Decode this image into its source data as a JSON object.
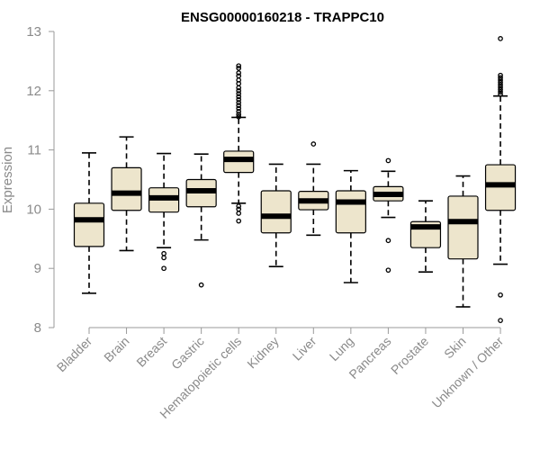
{
  "chart_data": {
    "type": "boxplot",
    "title": "ENSG00000160218 - TRAPPC10",
    "xlabel": "",
    "ylabel": "Expression",
    "ylim": [
      8,
      13
    ],
    "yticks": [
      8,
      9,
      10,
      11,
      12,
      13
    ],
    "grid": false,
    "box_color": "#ede5cc",
    "categories": [
      "Bladder",
      "Brain",
      "Breast",
      "Gastric",
      "Hematopoietic cells",
      "Kidney",
      "Liver",
      "Lung",
      "Pancreas",
      "Prostate",
      "Skin",
      "Unknown / Other"
    ],
    "boxes": [
      {
        "name": "Bladder",
        "whisker_low": 8.58,
        "q1": 9.37,
        "median": 9.82,
        "q3": 10.1,
        "whisker_high": 10.95,
        "outliers": []
      },
      {
        "name": "Brain",
        "whisker_low": 9.3,
        "q1": 9.98,
        "median": 10.27,
        "q3": 10.7,
        "whisker_high": 11.22,
        "outliers": []
      },
      {
        "name": "Breast",
        "whisker_low": 9.35,
        "q1": 9.95,
        "median": 10.19,
        "q3": 10.36,
        "whisker_high": 10.94,
        "outliers": [
          9.25,
          9.18,
          9.0
        ]
      },
      {
        "name": "Gastric",
        "whisker_low": 9.48,
        "q1": 10.04,
        "median": 10.31,
        "q3": 10.5,
        "whisker_high": 10.93,
        "outliers": [
          8.72
        ]
      },
      {
        "name": "Hematopoietic cells",
        "whisker_low": 10.1,
        "q1": 10.62,
        "median": 10.84,
        "q3": 10.98,
        "whisker_high": 11.55,
        "outliers": [
          12.42,
          12.38,
          12.3,
          12.25,
          12.18,
          12.12,
          12.05,
          12.0,
          11.95,
          11.9,
          11.85,
          11.8,
          11.75,
          11.7,
          11.65,
          11.6,
          11.56,
          10.05,
          10.0,
          9.93,
          9.8
        ]
      },
      {
        "name": "Kidney",
        "whisker_low": 9.03,
        "q1": 9.6,
        "median": 9.88,
        "q3": 10.31,
        "whisker_high": 10.76,
        "outliers": []
      },
      {
        "name": "Liver",
        "whisker_low": 9.56,
        "q1": 9.99,
        "median": 10.14,
        "q3": 10.3,
        "whisker_high": 10.76,
        "outliers": [
          11.1
        ]
      },
      {
        "name": "Lung",
        "whisker_low": 8.76,
        "q1": 9.6,
        "median": 10.12,
        "q3": 10.31,
        "whisker_high": 10.65,
        "outliers": []
      },
      {
        "name": "Pancreas",
        "whisker_low": 9.86,
        "q1": 10.14,
        "median": 10.25,
        "q3": 10.38,
        "whisker_high": 10.64,
        "outliers": [
          10.82,
          9.47,
          8.97
        ]
      },
      {
        "name": "Prostate",
        "whisker_low": 8.94,
        "q1": 9.35,
        "median": 9.7,
        "q3": 9.79,
        "whisker_high": 10.14,
        "outliers": []
      },
      {
        "name": "Skin",
        "whisker_low": 8.35,
        "q1": 9.16,
        "median": 9.79,
        "q3": 10.22,
        "whisker_high": 10.56,
        "outliers": []
      },
      {
        "name": "Unknown / Other",
        "whisker_low": 9.07,
        "q1": 9.98,
        "median": 10.41,
        "q3": 10.75,
        "whisker_high": 11.91,
        "outliers": [
          12.88,
          12.26,
          12.22,
          12.18,
          12.14,
          12.1,
          12.06,
          12.02,
          11.98,
          11.94,
          8.55,
          8.12
        ]
      }
    ]
  }
}
